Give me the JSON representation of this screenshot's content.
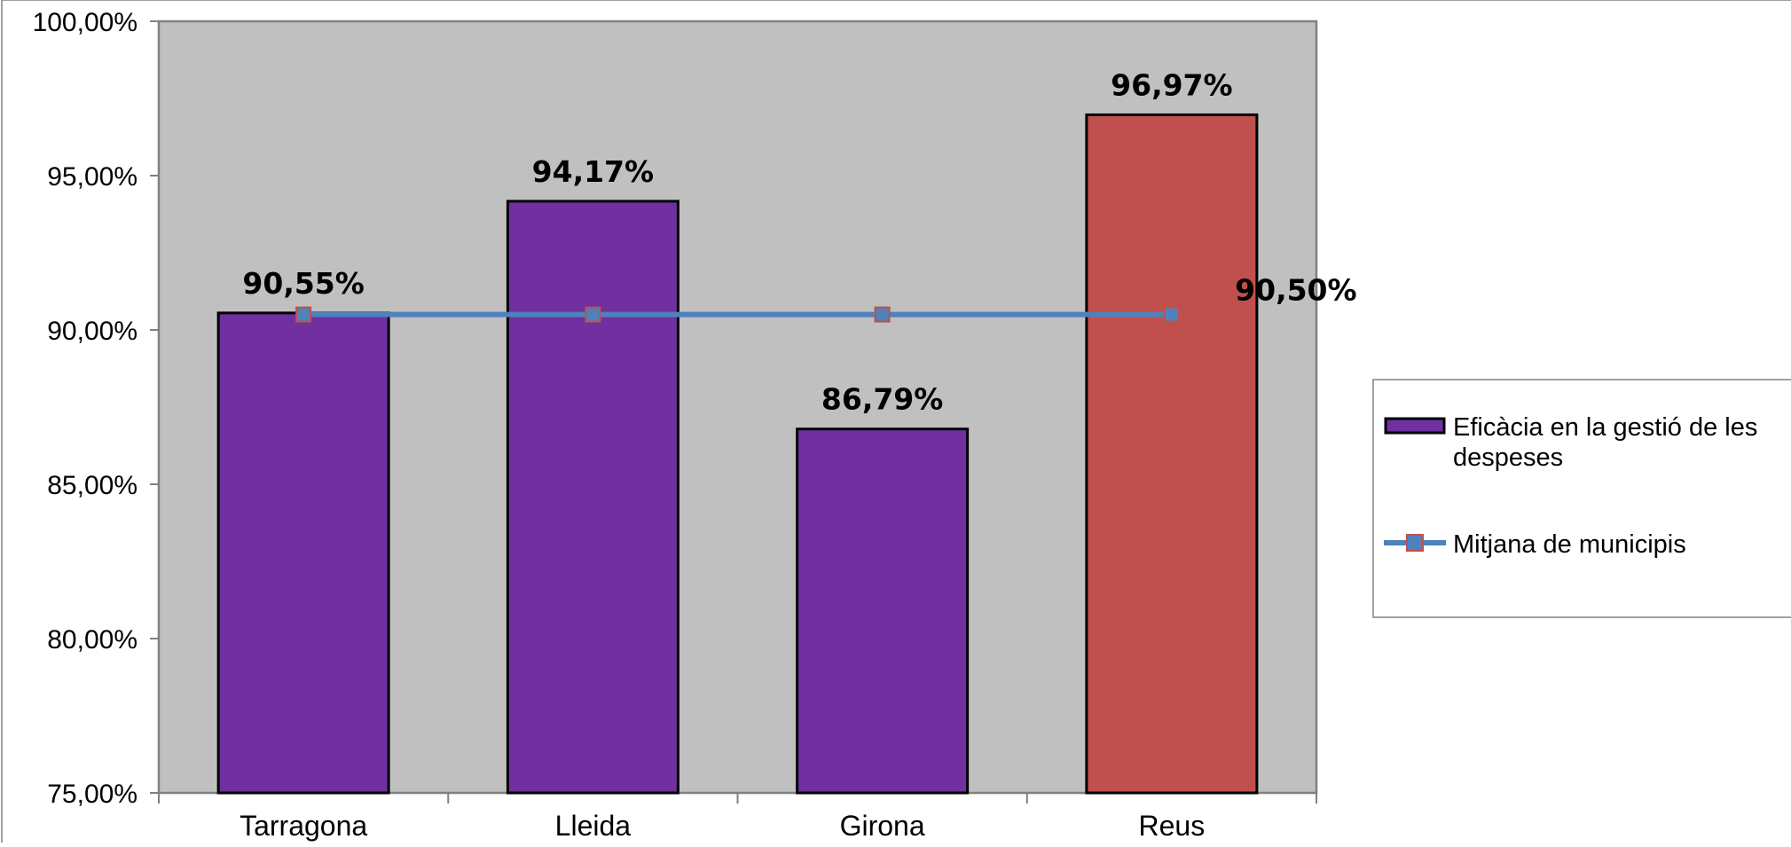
{
  "chart_data": {
    "type": "bar",
    "title": "",
    "xlabel": "",
    "ylabel": "",
    "categories": [
      "Tarragona",
      "Lleida",
      "Girona",
      "Reus"
    ],
    "ylim": [
      75,
      100
    ],
    "y_ticks": [
      100,
      95,
      90,
      85,
      80,
      75
    ],
    "y_tick_labels": [
      "100,00%",
      "95,00%",
      "90,00%",
      "85,00%",
      "80,00%",
      "75,00%"
    ],
    "grid": false,
    "legend_position": "right",
    "series": [
      {
        "name": "Eficàcia en la gestió de les despeses",
        "name_lines": [
          "Eficàcia en la gestió de les",
          "despeses"
        ],
        "type": "bar",
        "values": [
          90.55,
          94.17,
          86.79,
          96.97
        ],
        "labels": [
          "90,55%",
          "94,17%",
          "86,79%",
          "96,97%"
        ],
        "colors": [
          "#7030a0",
          "#7030a0",
          "#7030a0",
          "#c0504d"
        ]
      },
      {
        "name": "Mitjana de municipis",
        "type": "line",
        "values": [
          90.5,
          90.5,
          90.5,
          90.5
        ],
        "end_label": "90,50%",
        "color": "#4f81bd",
        "marker_fill": "#4f81bd",
        "marker_edge": "#c0504d"
      }
    ],
    "plot_background": "#c0c0c0"
  }
}
